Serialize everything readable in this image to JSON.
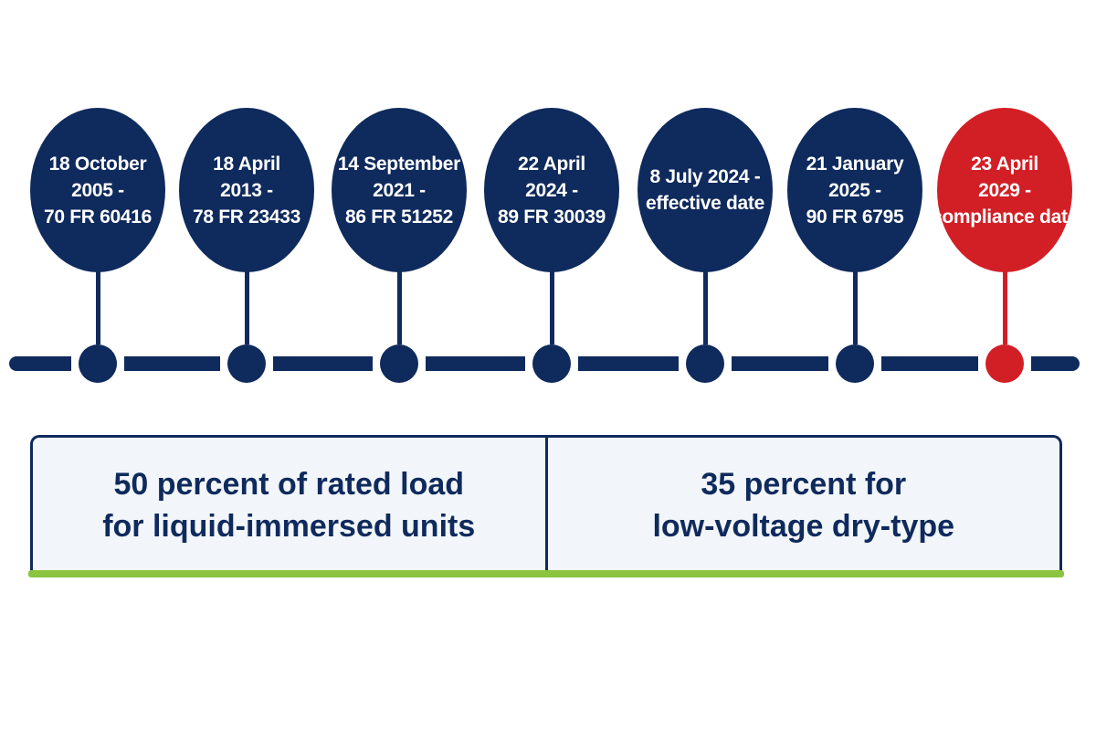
{
  "colors": {
    "navy": "#0f2a5c",
    "red": "#d21f26",
    "green": "#8bc53f",
    "panel_bg": "#f2f6fa"
  },
  "milestones": [
    {
      "lines": [
        "18 October",
        "2005 -",
        "70 FR 60416"
      ],
      "status": "past"
    },
    {
      "lines": [
        "18 April",
        "2013 -",
        "78 FR 23433"
      ],
      "status": "past"
    },
    {
      "lines": [
        "14 September",
        "2021 -",
        "86 FR 51252"
      ],
      "status": "past"
    },
    {
      "lines": [
        "22 April",
        "2024 -",
        "89 FR 30039"
      ],
      "status": "past"
    },
    {
      "lines": [
        "8 July 2024 -",
        "effective date"
      ],
      "status": "past"
    },
    {
      "lines": [
        "21 January",
        "2025 -",
        "90 FR 6795"
      ],
      "status": "past"
    },
    {
      "lines": [
        "23 April",
        "2029 -",
        "compliance date"
      ],
      "status": "highlight"
    }
  ],
  "panel": {
    "left_lines": [
      "50 percent of rated load",
      "for liquid-immersed units"
    ],
    "right_lines": [
      "35 percent for",
      "low-voltage dry-type"
    ]
  }
}
